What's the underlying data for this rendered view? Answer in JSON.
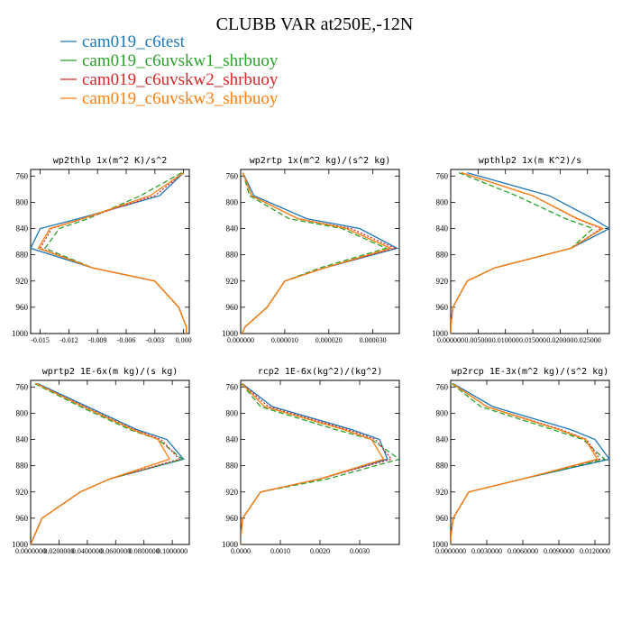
{
  "chart_data": {
    "title": "CLUBB VAR at250E,-12N",
    "series": [
      {
        "name": "cam019_c6test",
        "color": "#1f77b4",
        "dash": ""
      },
      {
        "name": "cam019_c6uvskw1_shrbuoy",
        "color": "#2ca02c",
        "dash": "6,3"
      },
      {
        "name": "cam019_c6uvskw2_shrbuoy",
        "color": "#d62728",
        "dash": "2,2"
      },
      {
        "name": "cam019_c6uvskw3_shrbuoy",
        "color": "#ff7f0e",
        "dash": ""
      }
    ],
    "y_levels": [
      755,
      790,
      825,
      840,
      870,
      900,
      920,
      960,
      990,
      1000
    ],
    "panels": [
      {
        "type": "line",
        "title": "wp2thlp  1x(m^2 K)/s^2",
        "xlim": [
          -0.016,
          0.0006
        ],
        "ylim": [
          1000,
          750
        ],
        "xticks": [
          -0.015,
          -0.012,
          -0.009,
          -0.006,
          -0.003,
          0.0
        ],
        "xticklabels": [
          "-0.015",
          "-0.012",
          "-0.009",
          "-0.006",
          "-0.003",
          "0.000"
        ],
        "yticks": [
          760,
          800,
          840,
          880,
          920,
          960,
          1000
        ],
        "values": [
          [
            0.0,
            -0.0025,
            -0.011,
            -0.015,
            -0.016,
            -0.0095,
            -0.003,
            -0.0005,
            0.0003,
            0.0003
          ],
          [
            -0.0002,
            -0.0045,
            -0.01,
            -0.013,
            -0.0145,
            -0.0095,
            -0.003,
            -0.0005,
            0.0003,
            0.0003
          ],
          [
            0.0,
            -0.003,
            -0.0105,
            -0.0138,
            -0.015,
            -0.0095,
            -0.003,
            -0.0005,
            0.0003,
            0.0003
          ],
          [
            0.0,
            -0.0035,
            -0.0106,
            -0.014,
            -0.0152,
            -0.0095,
            -0.003,
            -0.0005,
            0.0003,
            0.0003
          ]
        ]
      },
      {
        "type": "line",
        "title": "wp2rtp  1x(m^2 kg)/(s^2 kg)",
        "xlim": [
          0,
          3.6e-05
        ],
        "ylim": [
          1000,
          750
        ],
        "xticks": [
          0,
          1e-05,
          2e-05,
          3e-05
        ],
        "xticklabels": [
          "0.000000",
          "0.000010",
          "0.000020",
          "0.000030"
        ],
        "yticks": [
          760,
          800,
          840,
          880,
          920,
          960,
          1000
        ],
        "values": [
          [
            5e-07,
            3e-06,
            1.5e-05,
            2.7e-05,
            3.55e-05,
            1.9e-05,
            1e-05,
            6e-06,
            1e-06,
            3e-07
          ],
          [
            5e-07,
            2e-06,
            1.1e-05,
            2.3e-05,
            3.3e-05,
            1.8e-05,
            1e-05,
            6e-06,
            1e-06,
            3e-07
          ],
          [
            5e-07,
            2.5e-06,
            1.3e-05,
            2.5e-05,
            3.5e-05,
            1.9e-05,
            1e-05,
            6e-06,
            1e-06,
            3e-07
          ],
          [
            5e-07,
            2.5e-06,
            1.3e-05,
            2.4e-05,
            3.4e-05,
            1.9e-05,
            1e-05,
            6e-06,
            1e-06,
            3e-07
          ]
        ]
      },
      {
        "type": "line",
        "title": "wpthlp2  1x(m K^2)/s",
        "xlim": [
          0,
          0.029
        ],
        "ylim": [
          1000,
          750
        ],
        "xticks": [
          0,
          0.005,
          0.01,
          0.015,
          0.02,
          0.025
        ],
        "xticklabels": [
          "0.000000",
          "0.005000",
          "0.010000",
          "0.015000",
          "0.020000",
          "0.025000"
        ],
        "yticks": [
          760,
          800,
          840,
          880,
          920,
          960,
          1000
        ],
        "values": [
          [
            0.003,
            0.018,
            0.026,
            0.029,
            0.022,
            0.008,
            0.003,
            0.0004,
            0.0,
            0.0
          ],
          [
            0.0015,
            0.012,
            0.021,
            0.026,
            0.022,
            0.008,
            0.003,
            0.0004,
            0.0,
            0.0
          ],
          [
            0.002,
            0.015,
            0.023,
            0.0275,
            0.022,
            0.008,
            0.003,
            0.0004,
            0.0,
            0.0
          ],
          [
            0.002,
            0.015,
            0.0232,
            0.0278,
            0.022,
            0.008,
            0.003,
            0.0004,
            0.0,
            0.0
          ]
        ]
      },
      {
        "type": "line",
        "title": "wprtp2  1E-6x(m kg)/(s kg)",
        "xlim": [
          0,
          0.112
        ],
        "ylim": [
          1000,
          750
        ],
        "xticks": [
          0,
          0.02,
          0.04,
          0.06,
          0.08,
          0.1
        ],
        "xticklabels": [
          "0.0000000",
          "0.0200000",
          "0.0400000",
          "0.0600000",
          "0.0800000",
          "0.1000000"
        ],
        "yticks": [
          760,
          800,
          840,
          880,
          920,
          960,
          1000
        ],
        "values": [
          [
            0.005,
            0.04,
            0.075,
            0.096,
            0.108,
            0.056,
            0.035,
            0.008,
            0.002,
            0.0
          ],
          [
            0.003,
            0.035,
            0.07,
            0.09,
            0.107,
            0.056,
            0.035,
            0.008,
            0.002,
            0.0
          ],
          [
            0.004,
            0.038,
            0.073,
            0.092,
            0.105,
            0.056,
            0.035,
            0.008,
            0.002,
            0.0
          ],
          [
            0.004,
            0.037,
            0.072,
            0.09,
            0.098,
            0.056,
            0.035,
            0.008,
            0.002,
            0.0
          ]
        ]
      },
      {
        "type": "line",
        "title": "rcp2  1E-6x(kg^2)/(kg^2)",
        "xlim": [
          0,
          0.004
        ],
        "ylim": [
          1000,
          750
        ],
        "xticks": [
          0,
          0.001,
          0.002,
          0.003
        ],
        "xticklabels": [
          "0.0000",
          "0.0010",
          "0.0020",
          "0.0030"
        ],
        "yticks": [
          760,
          800,
          840,
          880,
          920,
          960,
          1000
        ],
        "values": [
          [
            4e-05,
            0.0008,
            0.0028,
            0.0035,
            0.0037,
            0.002,
            0.0005,
            5e-05,
            0.0,
            0.0
          ],
          [
            2e-05,
            0.0005,
            0.0024,
            0.0033,
            0.004,
            0.0022,
            0.0005,
            5e-05,
            0.0,
            0.0
          ],
          [
            3e-05,
            0.0007,
            0.0027,
            0.0034,
            0.0038,
            0.002,
            0.0005,
            5e-05,
            0.0,
            0.0
          ],
          [
            3e-05,
            0.0006,
            0.0026,
            0.0033,
            0.0036,
            0.002,
            0.0005,
            5e-05,
            0.0,
            0.0
          ]
        ]
      },
      {
        "type": "line",
        "title": "wp2rcp  1E-3x(m^2 kg)/(s^2 kg)",
        "xlim": [
          0,
          0.0132
        ],
        "ylim": [
          1000,
          750
        ],
        "xticks": [
          0,
          0.003,
          0.006,
          0.009,
          0.012
        ],
        "xticklabels": [
          "0.0000000",
          "0.0030000",
          "0.0060000",
          "0.0090000",
          "0.0120000"
        ],
        "yticks": [
          760,
          800,
          840,
          880,
          920,
          960,
          1000
        ],
        "values": [
          [
            0.0002,
            0.0035,
            0.01,
            0.012,
            0.0132,
            0.006,
            0.0015,
            0.0002,
            0.0,
            0.0
          ],
          [
            0.0001,
            0.0025,
            0.0085,
            0.011,
            0.0128,
            0.006,
            0.0015,
            0.0002,
            0.0,
            0.0
          ],
          [
            0.00015,
            0.003,
            0.0092,
            0.0113,
            0.0124,
            0.006,
            0.0015,
            0.0002,
            0.0,
            0.0
          ],
          [
            0.00015,
            0.003,
            0.009,
            0.0112,
            0.0122,
            0.006,
            0.0015,
            0.0002,
            0.0,
            0.0
          ]
        ]
      }
    ]
  }
}
